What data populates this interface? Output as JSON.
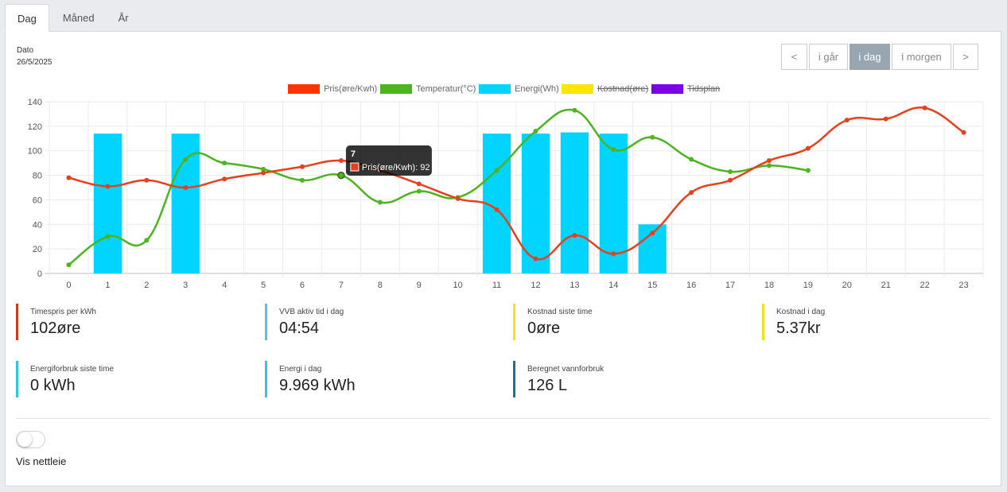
{
  "tabs": [
    {
      "label": "Dag",
      "active": true
    },
    {
      "label": "Måned",
      "active": false
    },
    {
      "label": "År",
      "active": false
    }
  ],
  "date": {
    "label": "Dato",
    "value": "26/5/2025"
  },
  "nav": {
    "prev": "<",
    "yesterday": "i går",
    "today": "i dag",
    "tomorrow": "i morgen",
    "next": ">"
  },
  "legend": [
    {
      "label": "Pris(øre/Kwh)",
      "color": "#ff3500",
      "hidden": false
    },
    {
      "label": "Temperatur(°C)",
      "color": "#4cb51e",
      "hidden": false
    },
    {
      "label": "Energi(Wh)",
      "color": "#00d4ff",
      "hidden": false
    },
    {
      "label": "Kostnad(øre)",
      "color": "#ffe600",
      "hidden": true
    },
    {
      "label": "Tidsplan",
      "color": "#7b00e6",
      "hidden": true
    }
  ],
  "chart_data": {
    "type": "bar+line",
    "x": [
      "0",
      "1",
      "2",
      "3",
      "4",
      "5",
      "6",
      "7",
      "8",
      "9",
      "10",
      "11",
      "12",
      "13",
      "14",
      "15",
      "16",
      "17",
      "18",
      "19",
      "20",
      "21",
      "22",
      "23"
    ],
    "ylim": [
      0,
      140
    ],
    "yticks": [
      0,
      20,
      40,
      60,
      80,
      100,
      120,
      140
    ],
    "grid": true,
    "legend_position": "top",
    "series": [
      {
        "name": "Pris(øre/Kwh)",
        "type": "line",
        "color": "#e8401c",
        "values": [
          78,
          71,
          76,
          70,
          77,
          82,
          87,
          92,
          84,
          73,
          61,
          52,
          12,
          31,
          16,
          33,
          66,
          76,
          92,
          102,
          125,
          126,
          135,
          115
        ]
      },
      {
        "name": "Temperatur(°C)",
        "type": "line",
        "color": "#4cb51e",
        "values": [
          7,
          30,
          27,
          93,
          90,
          85,
          76,
          80,
          58,
          67,
          62,
          84,
          116,
          133,
          101,
          111,
          93,
          83,
          88,
          84,
          null,
          null,
          null,
          null
        ]
      },
      {
        "name": "Energi(Wh)",
        "type": "bar",
        "color": "#00d4ff",
        "values": [
          0,
          114,
          0,
          114,
          0,
          0,
          0,
          0,
          0,
          0,
          0,
          114,
          114,
          115,
          114,
          40,
          0,
          0,
          0,
          0,
          0,
          0,
          0,
          0
        ]
      }
    ],
    "tooltip": {
      "title": "7",
      "text": "Pris(øre/Kwh): 92",
      "index": 7,
      "color": "#e8401c"
    }
  },
  "cards": [
    {
      "label": "Timespris per kWh",
      "value": "102øre",
      "color": "#d0381c"
    },
    {
      "label": "VVB aktiv tid i dag",
      "value": "04:54",
      "color": "#5bc0de"
    },
    {
      "label": "Kostnad siste time",
      "value": "0øre",
      "color": "#f2e11b"
    },
    {
      "label": "Kostnad i dag",
      "value": "5.37kr",
      "color": "#f2e11b"
    },
    {
      "label": "Energiforbruk siste time",
      "value": "0 kWh",
      "color": "#30c5e0"
    },
    {
      "label": "Energi i dag",
      "value": "9.969 kWh",
      "color": "#30c5e0"
    },
    {
      "label": "Beregnet vannforbruk",
      "value": "126 L",
      "color": "#1b6f9c"
    }
  ],
  "toggle": {
    "label": "Vis nettleie",
    "on": false
  }
}
